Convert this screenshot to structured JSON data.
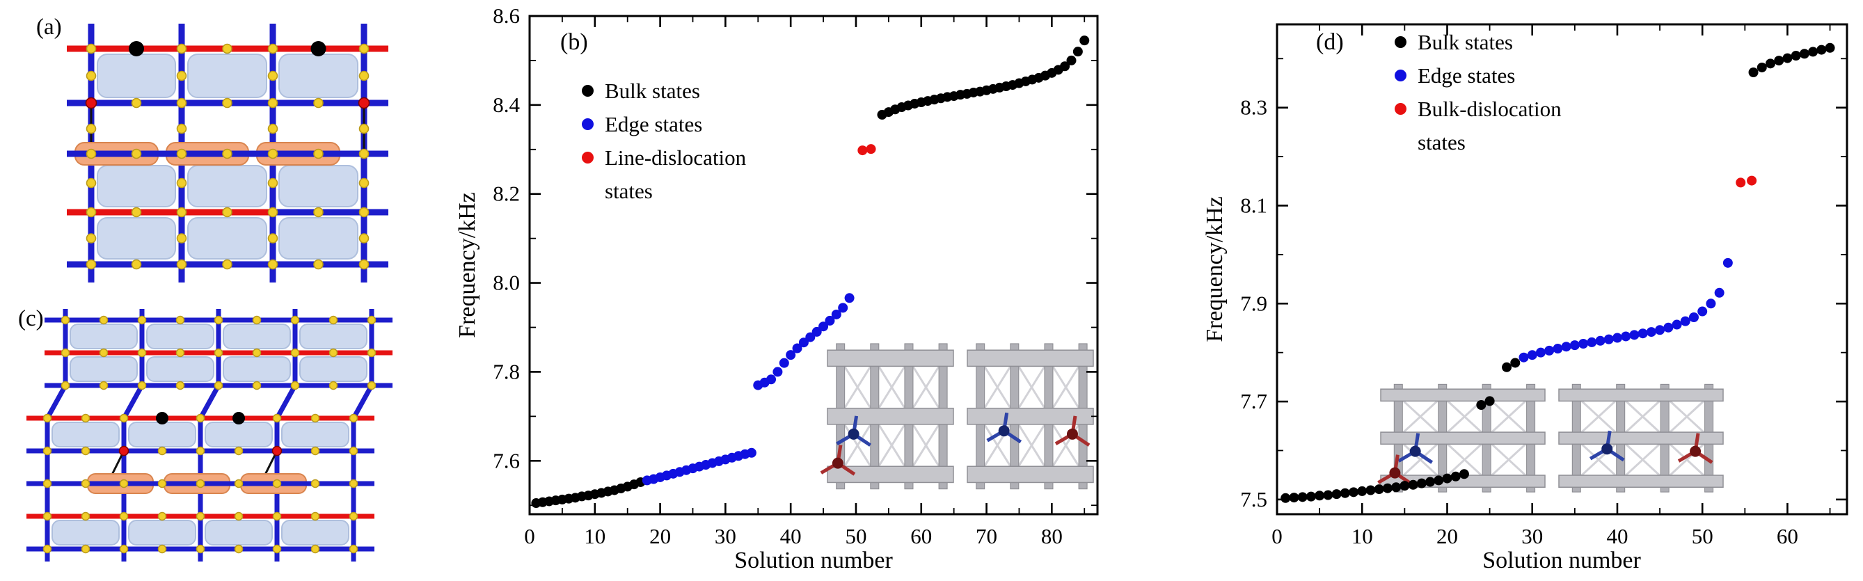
{
  "figure": {
    "background": "#ffffff"
  },
  "panels": {
    "a": {
      "label": "(a)"
    },
    "b": {
      "label": "(b)"
    },
    "c": {
      "label": "(c)"
    },
    "d": {
      "label": "(d)"
    }
  },
  "colors": {
    "bulk": "#000000",
    "edge": "#1010e0",
    "dislocation": "#e81010",
    "lattice_blue": "#1d1dcb",
    "lattice_red": "#e61212",
    "lattice_yellow": "#f2cf2a",
    "yellow_stroke": "#b99a1a",
    "cell_fill": "#cdd9ee",
    "cell_stroke": "#aebfdd",
    "orange_fill": "#f3a87d",
    "orange_stroke": "#d9854f"
  },
  "chart_data": [
    {
      "id": "b",
      "type": "scatter",
      "panel_label": "(b)",
      "xlabel": "Solution number",
      "ylabel": "Frequency/kHz",
      "xlim": [
        0,
        87
      ],
      "ylim": [
        7.48,
        8.6
      ],
      "xticks": [
        0,
        10,
        20,
        30,
        40,
        50,
        60,
        70,
        80
      ],
      "xtick_labels": [
        "0",
        "10",
        "20",
        "30",
        "40",
        "50",
        "60",
        "70",
        "80"
      ],
      "xticks_minor": [
        5,
        15,
        25,
        35,
        45,
        55,
        65,
        75,
        85
      ],
      "yticks": [
        7.6,
        7.8,
        8.0,
        8.2,
        8.4,
        8.6
      ],
      "ytick_labels": [
        "7.6",
        "7.8",
        "8.0",
        "8.2",
        "8.4",
        "8.6"
      ],
      "yticks_minor": [
        7.5,
        7.7,
        7.9,
        8.1,
        8.3,
        8.5
      ],
      "legend": [
        {
          "label": "Bulk states",
          "color": "#000000"
        },
        {
          "label": "Edge states",
          "color": "#1010e0"
        },
        {
          "label": "Line-dislocation",
          "label2": "states",
          "color": "#e81010"
        }
      ],
      "series": [
        {
          "name": "Bulk states",
          "color": "#000000",
          "x": [
            1,
            2,
            3,
            4,
            5,
            6,
            7,
            8,
            9,
            10,
            11,
            12,
            13,
            14,
            15,
            16,
            17,
            54,
            55,
            56,
            57,
            58,
            59,
            60,
            61,
            62,
            63,
            64,
            65,
            66,
            67,
            68,
            69,
            70,
            71,
            72,
            73,
            74,
            75,
            76,
            77,
            78,
            79,
            80,
            81,
            82,
            83,
            84,
            85
          ],
          "y": [
            7.505,
            7.507,
            7.509,
            7.511,
            7.513,
            7.515,
            7.517,
            7.52,
            7.522,
            7.525,
            7.528,
            7.531,
            7.534,
            7.538,
            7.542,
            7.547,
            7.552,
            8.378,
            8.384,
            8.39,
            8.395,
            8.399,
            8.403,
            8.406,
            8.409,
            8.412,
            8.415,
            8.418,
            8.42,
            8.423,
            8.425,
            8.428,
            8.43,
            8.433,
            8.436,
            8.439,
            8.442,
            8.445,
            8.449,
            8.453,
            8.457,
            8.461,
            8.466,
            8.472,
            8.479,
            8.487,
            8.5,
            8.52,
            8.545
          ]
        },
        {
          "name": "Edge states",
          "color": "#1010e0",
          "x": [
            18,
            19,
            20,
            21,
            22,
            23,
            24,
            25,
            26,
            27,
            28,
            29,
            30,
            31,
            32,
            33,
            34,
            35,
            36,
            37,
            38,
            39,
            40,
            41,
            42,
            43,
            44,
            45,
            46,
            47,
            48,
            49
          ],
          "y": [
            7.556,
            7.559,
            7.563,
            7.567,
            7.571,
            7.575,
            7.579,
            7.583,
            7.587,
            7.591,
            7.595,
            7.599,
            7.603,
            7.607,
            7.611,
            7.615,
            7.618,
            7.77,
            7.776,
            7.783,
            7.8,
            7.82,
            7.838,
            7.853,
            7.866,
            7.878,
            7.89,
            7.902,
            7.915,
            7.929,
            7.944,
            7.966
          ]
        },
        {
          "name": "Line-dislocation states",
          "color": "#e81010",
          "x": [
            51,
            52.3
          ],
          "y": [
            8.298,
            8.301
          ]
        }
      ]
    },
    {
      "id": "d",
      "type": "scatter",
      "panel_label": "(d)",
      "xlabel": "Solution number",
      "ylabel": "Frequency/kHz",
      "xlim": [
        0,
        67
      ],
      "ylim": [
        7.47,
        8.47
      ],
      "xticks": [
        0,
        10,
        20,
        30,
        40,
        50,
        60
      ],
      "xtick_labels": [
        "0",
        "10",
        "20",
        "30",
        "40",
        "50",
        "60"
      ],
      "xticks_minor": [
        5,
        15,
        25,
        35,
        45,
        55,
        65
      ],
      "yticks": [
        7.5,
        7.7,
        7.9,
        8.1,
        8.3
      ],
      "ytick_labels": [
        "7.5",
        "7.7",
        "7.9",
        "8.1",
        "8.3"
      ],
      "yticks_minor": [
        7.6,
        7.8,
        8.0,
        8.2,
        8.4
      ],
      "legend": [
        {
          "label": "Bulk states",
          "color": "#000000"
        },
        {
          "label": "Edge states",
          "color": "#1010e0"
        },
        {
          "label": "Bulk-dislocation",
          "label2": "states",
          "color": "#e81010"
        }
      ],
      "series": [
        {
          "name": "Bulk states",
          "color": "#000000",
          "x": [
            1,
            2,
            3,
            4,
            5,
            6,
            7,
            8,
            9,
            10,
            11,
            12,
            13,
            14,
            15,
            16,
            17,
            18,
            19,
            20,
            21,
            22,
            24,
            25,
            27,
            28,
            56,
            57,
            58,
            59,
            60,
            61,
            62,
            63,
            64,
            65
          ],
          "y": [
            7.503,
            7.504,
            7.505,
            7.506,
            7.508,
            7.509,
            7.511,
            7.513,
            7.515,
            7.517,
            7.519,
            7.521,
            7.523,
            7.525,
            7.528,
            7.53,
            7.533,
            7.536,
            7.539,
            7.543,
            7.547,
            7.552,
            7.693,
            7.701,
            7.77,
            7.779,
            8.372,
            8.382,
            8.39,
            8.396,
            8.401,
            8.406,
            8.41,
            8.414,
            8.418,
            8.422
          ]
        },
        {
          "name": "Edge states",
          "color": "#1010e0",
          "x": [
            29,
            30,
            31,
            32,
            33,
            34,
            35,
            36,
            37,
            38,
            39,
            40,
            41,
            42,
            43,
            44,
            45,
            46,
            47,
            48,
            49,
            50,
            51,
            52,
            53
          ],
          "y": [
            7.79,
            7.795,
            7.8,
            7.804,
            7.808,
            7.812,
            7.815,
            7.818,
            7.821,
            7.824,
            7.827,
            7.83,
            7.833,
            7.836,
            7.839,
            7.842,
            7.846,
            7.851,
            7.857,
            7.864,
            7.872,
            7.884,
            7.9,
            7.922,
            7.983
          ]
        },
        {
          "name": "Bulk-dislocation states",
          "color": "#e81010",
          "x": [
            54.5,
            55.8
          ],
          "y": [
            8.147,
            8.151
          ]
        }
      ]
    }
  ]
}
